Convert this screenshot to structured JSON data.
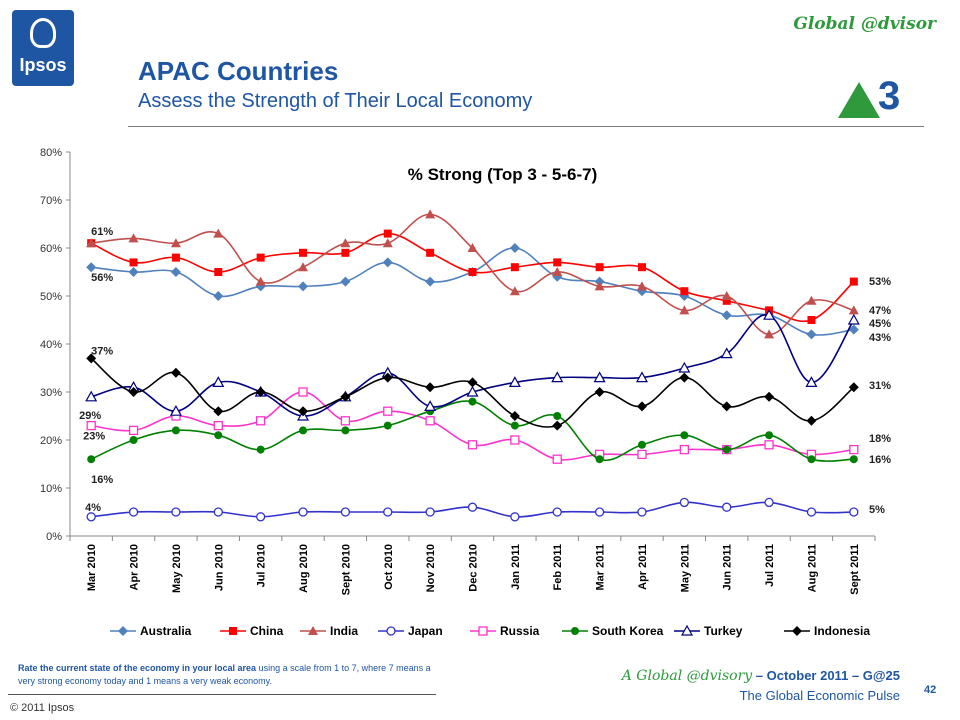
{
  "header": {
    "logo_text": "Ipsos",
    "brand": "Global @dvisor",
    "title": "APAC Countries",
    "subtitle": "Assess the Strength of Their Local Economy",
    "indicator_value": "3"
  },
  "footer": {
    "question_bold": "Rate the current state of the economy in your local area",
    "question_rest": " using a scale from 1 to 7, where 7 means a very strong economy today and 1 means a very weak economy.",
    "copyright": "© 2011 Ipsos",
    "line1_italic": "A Global @dvisory",
    "line1_rest": " – October 2011 – G@25",
    "line2": "The Global Economic Pulse",
    "page_number": "42"
  },
  "chart_data": {
    "type": "line",
    "title": "% Strong (Top 3 - 5-6-7)",
    "xlabel": "",
    "ylabel": "",
    "ylim": [
      0,
      80
    ],
    "yticks": [
      "0%",
      "10%",
      "20%",
      "30%",
      "40%",
      "50%",
      "60%",
      "70%",
      "80%"
    ],
    "legend_position": "bottom",
    "categories": [
      "Mar 2010",
      "Apr 2010",
      "May 2010",
      "Jun 2010",
      "Jul 2010",
      "Aug 2010",
      "Sept 2010",
      "Oct 2010",
      "Nov 2010",
      "Dec 2010",
      "Jan 2011",
      "Feb 2011",
      "Mar 2011",
      "Apr 2011",
      "May 2011",
      "Jun 2011",
      "Jul 2011",
      "Aug 2011",
      "Sept 2011"
    ],
    "series": [
      {
        "name": "Australia",
        "color": "#4f81bd",
        "marker": "diamond",
        "values": [
          56,
          55,
          55,
          50,
          52,
          52,
          53,
          57,
          53,
          55,
          60,
          54,
          53,
          51,
          50,
          46,
          46,
          42,
          43
        ],
        "start_label": "56%",
        "end_label": "43%"
      },
      {
        "name": "China",
        "color": "#ff0000",
        "marker": "square",
        "values": [
          61,
          57,
          58,
          55,
          58,
          59,
          59,
          63,
          59,
          55,
          56,
          57,
          56,
          56,
          51,
          49,
          47,
          45,
          53
        ],
        "start_label": "61%",
        "end_label": "53%"
      },
      {
        "name": "India",
        "color": "#c0504d",
        "marker": "triangle",
        "values": [
          61,
          62,
          61,
          63,
          53,
          56,
          61,
          61,
          67,
          60,
          51,
          55,
          52,
          52,
          47,
          50,
          42,
          49,
          47
        ],
        "start_label": "",
        "end_label": "47%"
      },
      {
        "name": "Japan",
        "color": "#3333cc",
        "marker": "circle-open",
        "values": [
          4,
          5,
          5,
          5,
          4,
          5,
          5,
          5,
          5,
          6,
          4,
          5,
          5,
          5,
          7,
          6,
          7,
          5,
          5
        ],
        "start_label": "4%",
        "end_label": "5%"
      },
      {
        "name": "Russia",
        "color": "#ff33cc",
        "marker": "square-open",
        "values": [
          23,
          22,
          25,
          23,
          24,
          30,
          24,
          26,
          24,
          19,
          20,
          16,
          17,
          17,
          18,
          18,
          19,
          17,
          18
        ],
        "start_label": "23%",
        "end_label": "18%"
      },
      {
        "name": "South Korea",
        "color": "#008000",
        "marker": "circle",
        "values": [
          16,
          20,
          22,
          21,
          18,
          22,
          22,
          23,
          26,
          28,
          23,
          25,
          16,
          19,
          21,
          18,
          21,
          16,
          16
        ],
        "start_label": "16%",
        "end_label": "16%"
      },
      {
        "name": "Turkey",
        "color": "#000080",
        "marker": "triangle-open",
        "values": [
          29,
          31,
          26,
          32,
          30,
          25,
          29,
          34,
          27,
          30,
          32,
          33,
          33,
          33,
          35,
          38,
          46,
          32,
          45
        ],
        "start_label": "29%",
        "end_label": "45%"
      },
      {
        "name": "Indonesia",
        "color": "#000000",
        "marker": "diamond",
        "values": [
          37,
          30,
          34,
          26,
          30,
          26,
          29,
          33,
          31,
          32,
          25,
          23,
          30,
          27,
          33,
          27,
          29,
          24,
          31
        ],
        "start_label": "37%",
        "end_label": "31%"
      }
    ]
  }
}
